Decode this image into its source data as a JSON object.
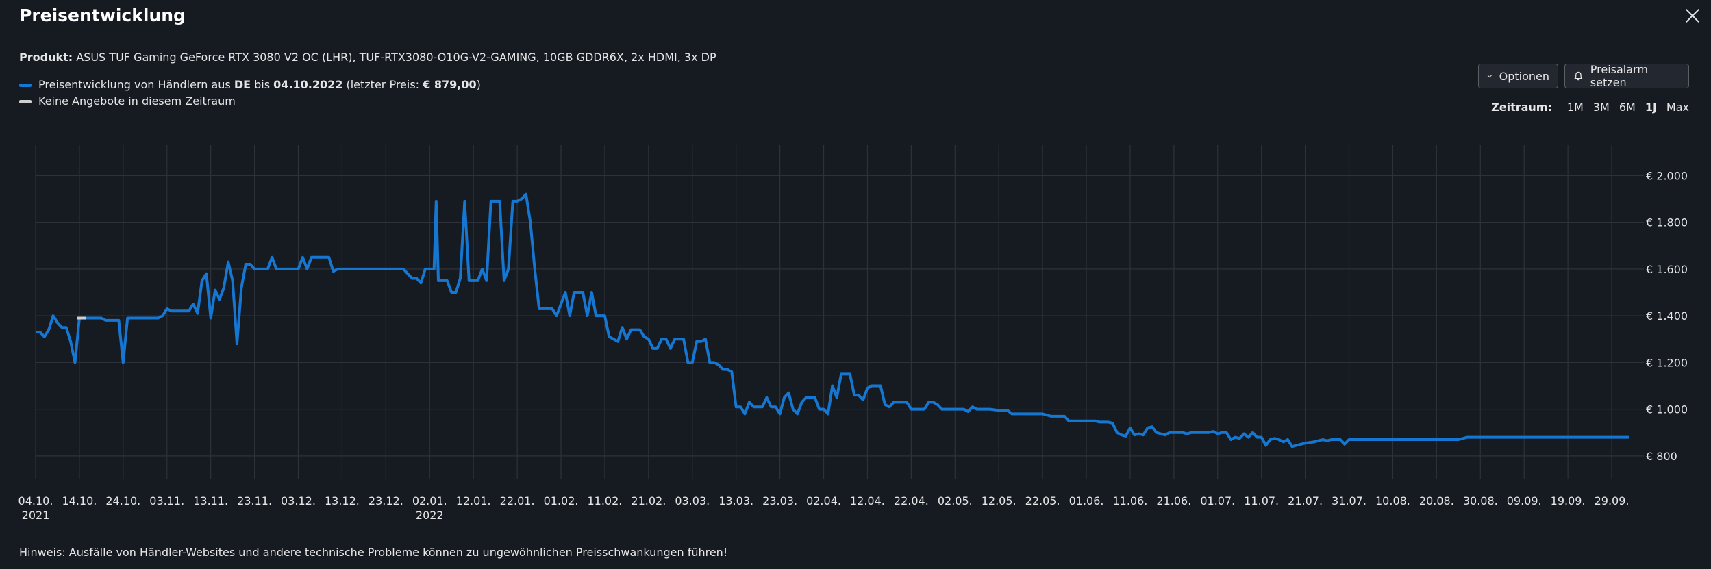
{
  "header": {
    "title": "Preisentwicklung"
  },
  "product": {
    "label": "Produkt:",
    "name": "ASUS TUF Gaming GeForce RTX 3080 V2 OC (LHR), TUF-RTX3080-O10G-V2-GAMING, 10GB GDDR6X, 2x HDMI, 3x DP"
  },
  "legend": {
    "line_prefix": "Preisentwicklung von Händlern aus ",
    "country": "DE",
    "line_mid": " bis ",
    "date": "04.10.2022",
    "line_last_prefix": " (letzter Preis: ",
    "last_price": "€ 879,00",
    "line_suffix": ")",
    "no_offers": "Keine Angebote in diesem Zeitraum",
    "color_line": "#1677d2",
    "color_gap": "#cfcfcf"
  },
  "buttons": {
    "options": "Optionen",
    "alarm": "Preisalarm setzen"
  },
  "zeitraum": {
    "label": "Zeitraum:",
    "options": [
      "1M",
      "3M",
      "6M",
      "1J",
      "Max"
    ],
    "active": "1J"
  },
  "note": "Hinweis: Ausfälle von Händler-Websites und andere technische Probleme können zu ungewöhnlichen Preisschwankungen führen!",
  "chart_data": {
    "type": "line",
    "title": "",
    "xlabel": "",
    "ylabel": "",
    "ylim": [
      700,
      2130
    ],
    "y_ticks": [
      800,
      1000,
      1200,
      1400,
      1600,
      1800,
      2000
    ],
    "y_tick_labels": [
      "€ 800",
      "€ 1.000",
      "€ 1.200",
      "€ 1.400",
      "€ 1.600",
      "€ 1.800",
      "€ 2.000"
    ],
    "x_ticks": [
      "04.10.",
      "14.10.",
      "24.10.",
      "03.11.",
      "13.11.",
      "23.11.",
      "03.12.",
      "13.12.",
      "23.12.",
      "02.01.",
      "12.01.",
      "22.01.",
      "01.02.",
      "11.02.",
      "21.02.",
      "03.03.",
      "13.03.",
      "23.03.",
      "02.04.",
      "12.04.",
      "22.04.",
      "02.05.",
      "12.05.",
      "22.05.",
      "01.06.",
      "11.06.",
      "21.06.",
      "01.07.",
      "11.07.",
      "21.07.",
      "31.07.",
      "10.08.",
      "20.08.",
      "30.08.",
      "09.09.",
      "19.09.",
      "29.09."
    ],
    "x_tick_sublabels": {
      "0": "2021",
      "9": "2022"
    },
    "x_range_days": [
      0,
      365
    ],
    "grid": true,
    "series": [
      {
        "color": "#1677d2",
        "points": [
          [
            0,
            1330
          ],
          [
            1,
            1330
          ],
          [
            2,
            1310
          ],
          [
            3,
            1340
          ],
          [
            4,
            1400
          ],
          [
            5,
            1370
          ],
          [
            6,
            1350
          ],
          [
            7,
            1350
          ],
          [
            8,
            1290
          ],
          [
            9,
            1200
          ],
          [
            10,
            1390
          ],
          [
            12,
            1390
          ],
          [
            15,
            1390
          ],
          [
            16,
            1380
          ],
          [
            17,
            1380
          ],
          [
            18,
            1380
          ],
          [
            19,
            1380
          ],
          [
            20,
            1200
          ],
          [
            21,
            1390
          ],
          [
            22,
            1390
          ],
          [
            25,
            1390
          ],
          [
            27,
            1390
          ],
          [
            28,
            1390
          ],
          [
            29,
            1400
          ],
          [
            30,
            1430
          ],
          [
            31,
            1420
          ],
          [
            33,
            1420
          ],
          [
            35,
            1420
          ],
          [
            36,
            1450
          ],
          [
            37,
            1410
          ],
          [
            38,
            1550
          ],
          [
            39,
            1580
          ],
          [
            40,
            1390
          ],
          [
            41,
            1510
          ],
          [
            42,
            1470
          ],
          [
            43,
            1520
          ],
          [
            44,
            1630
          ],
          [
            45,
            1550
          ],
          [
            46,
            1280
          ],
          [
            47,
            1520
          ],
          [
            48,
            1620
          ],
          [
            49,
            1620
          ],
          [
            50,
            1600
          ],
          [
            51,
            1600
          ],
          [
            53,
            1600
          ],
          [
            54,
            1650
          ],
          [
            55,
            1600
          ],
          [
            57,
            1600
          ],
          [
            60,
            1600
          ],
          [
            61,
            1650
          ],
          [
            62,
            1600
          ],
          [
            63,
            1650
          ],
          [
            66,
            1650
          ],
          [
            67,
            1650
          ],
          [
            68,
            1590
          ],
          [
            69,
            1600
          ],
          [
            70,
            1600
          ],
          [
            72,
            1600
          ],
          [
            75,
            1600
          ],
          [
            80,
            1600
          ],
          [
            84,
            1600
          ],
          [
            85,
            1580
          ],
          [
            86,
            1560
          ],
          [
            87,
            1560
          ],
          [
            88,
            1540
          ],
          [
            89,
            1600
          ],
          [
            90,
            1600
          ],
          [
            91,
            1600
          ],
          [
            91.5,
            1890
          ],
          [
            92,
            1550
          ],
          [
            93,
            1550
          ],
          [
            94,
            1550
          ],
          [
            95,
            1500
          ],
          [
            96,
            1500
          ],
          [
            97,
            1560
          ],
          [
            98,
            1890
          ],
          [
            99,
            1550
          ],
          [
            100,
            1550
          ],
          [
            101,
            1550
          ],
          [
            102,
            1600
          ],
          [
            103,
            1550
          ],
          [
            104,
            1890
          ],
          [
            105,
            1890
          ],
          [
            106,
            1890
          ],
          [
            107,
            1550
          ],
          [
            108,
            1600
          ],
          [
            109,
            1890
          ],
          [
            110,
            1890
          ],
          [
            111,
            1900
          ],
          [
            112,
            1920
          ],
          [
            113,
            1800
          ],
          [
            114,
            1600
          ],
          [
            115,
            1430
          ],
          [
            116,
            1430
          ],
          [
            117,
            1430
          ],
          [
            118,
            1430
          ],
          [
            119,
            1400
          ],
          [
            120,
            1450
          ],
          [
            121,
            1500
          ],
          [
            122,
            1400
          ],
          [
            123,
            1500
          ],
          [
            124,
            1500
          ],
          [
            125,
            1500
          ],
          [
            126,
            1400
          ],
          [
            127,
            1500
          ],
          [
            128,
            1400
          ],
          [
            129,
            1400
          ],
          [
            130,
            1400
          ],
          [
            131,
            1310
          ],
          [
            132,
            1300
          ],
          [
            133,
            1290
          ],
          [
            134,
            1350
          ],
          [
            135,
            1300
          ],
          [
            136,
            1340
          ],
          [
            137,
            1340
          ],
          [
            138,
            1340
          ],
          [
            139,
            1310
          ],
          [
            140,
            1300
          ],
          [
            141,
            1260
          ],
          [
            142,
            1260
          ],
          [
            143,
            1300
          ],
          [
            144,
            1300
          ],
          [
            145,
            1260
          ],
          [
            146,
            1300
          ],
          [
            147,
            1300
          ],
          [
            148,
            1300
          ],
          [
            149,
            1200
          ],
          [
            150,
            1200
          ],
          [
            151,
            1290
          ],
          [
            152,
            1290
          ],
          [
            153,
            1300
          ],
          [
            154,
            1200
          ],
          [
            155,
            1200
          ],
          [
            156,
            1190
          ],
          [
            157,
            1170
          ],
          [
            158,
            1170
          ],
          [
            159,
            1160
          ],
          [
            160,
            1010
          ],
          [
            161,
            1010
          ],
          [
            162,
            980
          ],
          [
            163,
            1030
          ],
          [
            164,
            1010
          ],
          [
            165,
            1010
          ],
          [
            166,
            1010
          ],
          [
            167,
            1050
          ],
          [
            168,
            1010
          ],
          [
            169,
            1010
          ],
          [
            170,
            980
          ],
          [
            171,
            1050
          ],
          [
            172,
            1070
          ],
          [
            173,
            1000
          ],
          [
            174,
            980
          ],
          [
            175,
            1030
          ],
          [
            176,
            1050
          ],
          [
            177,
            1050
          ],
          [
            178,
            1050
          ],
          [
            179,
            1000
          ],
          [
            180,
            1000
          ],
          [
            181,
            980
          ],
          [
            182,
            1100
          ],
          [
            183,
            1050
          ],
          [
            184,
            1150
          ],
          [
            185,
            1150
          ],
          [
            186,
            1150
          ],
          [
            187,
            1060
          ],
          [
            188,
            1060
          ],
          [
            189,
            1040
          ],
          [
            190,
            1090
          ],
          [
            191,
            1100
          ],
          [
            192,
            1100
          ],
          [
            193,
            1100
          ],
          [
            194,
            1020
          ],
          [
            195,
            1010
          ],
          [
            196,
            1030
          ],
          [
            197,
            1030
          ],
          [
            198,
            1030
          ],
          [
            199,
            1030
          ],
          [
            200,
            1000
          ],
          [
            201,
            1000
          ],
          [
            202,
            1000
          ],
          [
            203,
            1000
          ],
          [
            204,
            1030
          ],
          [
            205,
            1030
          ],
          [
            206,
            1020
          ],
          [
            207,
            1000
          ],
          [
            208,
            1000
          ],
          [
            212,
            1000
          ],
          [
            213,
            990
          ],
          [
            214,
            1010
          ],
          [
            215,
            1000
          ],
          [
            218,
            1000
          ],
          [
            220,
            995
          ],
          [
            222,
            995
          ],
          [
            223,
            980
          ],
          [
            224,
            980
          ],
          [
            230,
            980
          ],
          [
            232,
            970
          ],
          [
            235,
            970
          ],
          [
            236,
            950
          ],
          [
            240,
            950
          ],
          [
            242,
            950
          ],
          [
            243,
            945
          ],
          [
            245,
            945
          ],
          [
            246,
            940
          ],
          [
            247,
            900
          ],
          [
            248,
            890
          ],
          [
            249,
            885
          ],
          [
            250,
            920
          ],
          [
            251,
            890
          ],
          [
            252,
            895
          ],
          [
            253,
            890
          ],
          [
            254,
            920
          ],
          [
            255,
            925
          ],
          [
            256,
            900
          ],
          [
            257,
            895
          ],
          [
            258,
            890
          ],
          [
            259,
            900
          ],
          [
            262,
            900
          ],
          [
            263,
            895
          ],
          [
            264,
            900
          ],
          [
            268,
            900
          ],
          [
            269,
            905
          ],
          [
            270,
            895
          ],
          [
            271,
            900
          ],
          [
            272,
            900
          ],
          [
            273,
            870
          ],
          [
            274,
            880
          ],
          [
            275,
            875
          ],
          [
            276,
            895
          ],
          [
            277,
            880
          ],
          [
            278,
            900
          ],
          [
            279,
            880
          ],
          [
            280,
            880
          ],
          [
            281,
            845
          ],
          [
            282,
            870
          ],
          [
            283,
            875
          ],
          [
            284,
            870
          ],
          [
            285,
            860
          ],
          [
            286,
            870
          ],
          [
            287,
            840
          ],
          [
            288,
            845
          ],
          [
            289,
            850
          ],
          [
            290,
            855
          ],
          [
            292,
            860
          ],
          [
            293,
            865
          ],
          [
            294,
            870
          ],
          [
            295,
            865
          ],
          [
            296,
            870
          ],
          [
            297,
            870
          ],
          [
            298,
            870
          ],
          [
            299,
            850
          ],
          [
            300,
            870
          ],
          [
            305,
            870
          ],
          [
            310,
            870
          ],
          [
            315,
            870
          ],
          [
            320,
            870
          ],
          [
            325,
            870
          ],
          [
            326,
            875
          ],
          [
            327,
            880
          ],
          [
            330,
            880
          ],
          [
            335,
            880
          ],
          [
            340,
            880
          ],
          [
            345,
            880
          ],
          [
            350,
            880
          ],
          [
            355,
            880
          ],
          [
            364,
            880
          ]
        ]
      }
    ],
    "gap_segments": [
      [
        9.5,
        11.5,
        1390
      ]
    ]
  }
}
